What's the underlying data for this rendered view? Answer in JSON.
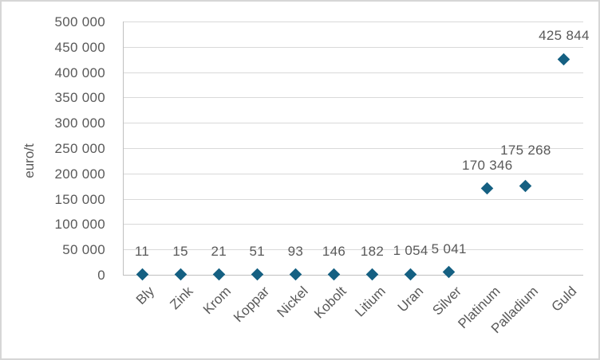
{
  "chart_data": {
    "type": "scatter",
    "title": "",
    "xlabel": "",
    "ylabel": "euro/t",
    "categories": [
      "Bly",
      "Zink",
      "Krom",
      "Koppar",
      "Nickel",
      "Kobolt",
      "Litium",
      "Uran",
      "Silver",
      "Platinum",
      "Palladium",
      "Guld"
    ],
    "values": [
      11,
      15,
      21,
      51,
      93,
      146,
      182,
      1054,
      5041,
      170346,
      175268,
      425844
    ],
    "data_labels": [
      "11",
      "15",
      "21",
      "51",
      "93",
      "146",
      "182",
      "1 054",
      "5 041",
      "170 346",
      "175 268",
      "425 844"
    ],
    "y_ticks": [
      {
        "value": 0,
        "label": "0"
      },
      {
        "value": 50000,
        "label": "50 000"
      },
      {
        "value": 100000,
        "label": "100 000"
      },
      {
        "value": 150000,
        "label": "150 000"
      },
      {
        "value": 200000,
        "label": "200 000"
      },
      {
        "value": 250000,
        "label": "250 000"
      },
      {
        "value": 300000,
        "label": "300 000"
      },
      {
        "value": 350000,
        "label": "350 000"
      },
      {
        "value": 400000,
        "label": "400 000"
      },
      {
        "value": 450000,
        "label": "450 000"
      },
      {
        "value": 500000,
        "label": "500 000"
      }
    ],
    "ylim": [
      0,
      500000
    ],
    "grid": true,
    "legend": "none",
    "marker": {
      "shape": "diamond",
      "color": "#156082"
    }
  },
  "colors": {
    "marker": "#156082",
    "gridline": "#d9d9d9",
    "axis_line": "#bfbfbf",
    "text": "#595959",
    "chart_border": "#d6d6d6"
  }
}
